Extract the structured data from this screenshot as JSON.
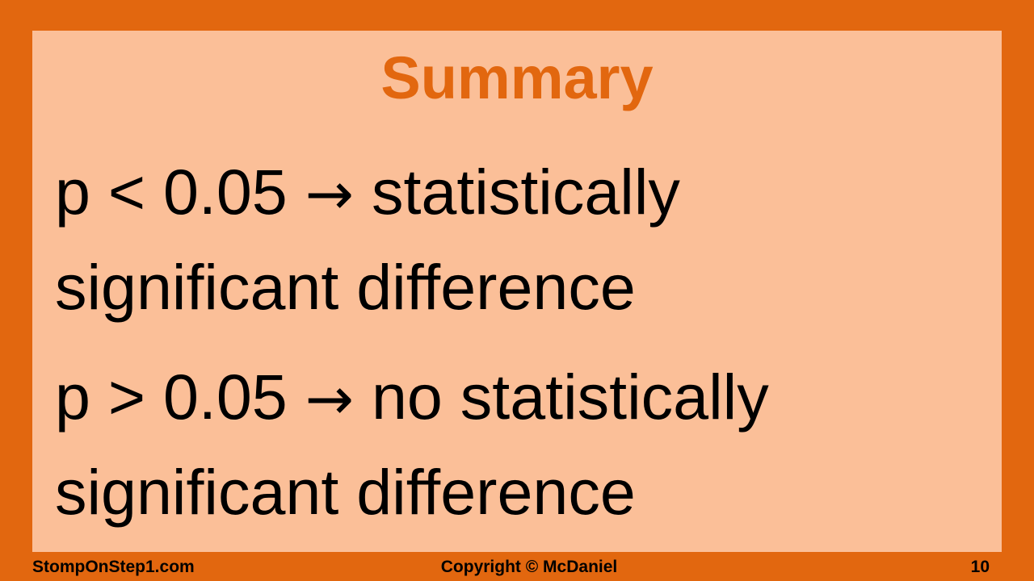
{
  "slide": {
    "title": "Summary",
    "bullets": [
      {
        "condition": "p < 0.05",
        "arrow": "→",
        "line1_text": "statistically",
        "line2_text": "significant difference"
      },
      {
        "condition": "p > 0.05",
        "arrow": "→",
        "line1_text": "no statistically",
        "line2_text": "significant difference"
      }
    ]
  },
  "footer": {
    "website": "StompOnStep1.com",
    "copyright": "Copyright © McDaniel",
    "page_number": "10"
  },
  "colors": {
    "border": "#e2670f",
    "panel": "#fbbf98",
    "title": "#e2670f",
    "text": "#000000"
  }
}
